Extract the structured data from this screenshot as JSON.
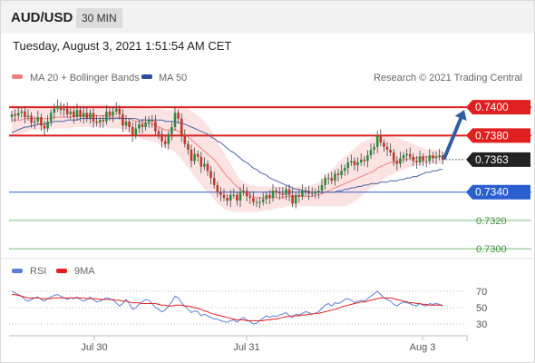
{
  "header": {
    "symbol": "AUD/USD",
    "timeframe": "30 MIN"
  },
  "datetime": "Tuesday, August 3, 2021 1:51:54 AM CET",
  "legend": {
    "ma20": {
      "label": "MA 20 + Bollinger Bands",
      "color": "#f08080"
    },
    "ma50": {
      "label": "MA 50",
      "color": "#2a4f9a"
    },
    "rsi": {
      "label": "RSI",
      "color": "#5b7fd6"
    },
    "ma9": {
      "label": "9MA",
      "color": "#e02020"
    }
  },
  "credit": "Research © 2021 Trading Central",
  "chart_data": {
    "type": "candlestick",
    "y_range": [
      0.7293,
      0.7411
    ],
    "levels": [
      {
        "value": 0.74,
        "label": "0.7400",
        "kind": "resistance",
        "color": "#e02020"
      },
      {
        "value": 0.738,
        "label": "0.7380",
        "kind": "resistance",
        "color": "#e02020"
      },
      {
        "value": 0.7363,
        "label": "0.7363",
        "kind": "last-price",
        "color": "#222222"
      },
      {
        "value": 0.734,
        "label": "0.7340",
        "kind": "pivot",
        "color": "#2a5fd0"
      },
      {
        "value": 0.732,
        "label": "0.7320",
        "kind": "support",
        "color": "#7cb87c"
      },
      {
        "value": 0.73,
        "label": "0.7300",
        "kind": "support",
        "color": "#7cb87c"
      }
    ],
    "x_ticks": [
      "Jul 30",
      "Jul 31",
      "Aug 3"
    ],
    "bullish_color": "#2e8b3a",
    "bearish_color": "#c0392b",
    "close": [
      0.7395,
      0.7394,
      0.7396,
      0.7397,
      0.7393,
      0.7394,
      0.7389,
      0.739,
      0.7393,
      0.7387,
      0.7385,
      0.739,
      0.7396,
      0.7399,
      0.7401,
      0.7398,
      0.7399,
      0.7395,
      0.7397,
      0.7393,
      0.7398,
      0.7393,
      0.7396,
      0.7392,
      0.7396,
      0.739,
      0.7389,
      0.7391,
      0.739,
      0.7397,
      0.7394,
      0.7397,
      0.7399,
      0.7395,
      0.7387,
      0.739,
      0.7386,
      0.738,
      0.7385,
      0.7388,
      0.7386,
      0.7389,
      0.7391,
      0.739,
      0.7383,
      0.7381,
      0.7376,
      0.7374,
      0.7381,
      0.7386,
      0.7396,
      0.7392,
      0.738,
      0.7374,
      0.737,
      0.7362,
      0.7367,
      0.7365,
      0.7358,
      0.736,
      0.7355,
      0.735,
      0.7345,
      0.734,
      0.7338,
      0.7336,
      0.7334,
      0.7338,
      0.7338,
      0.7334,
      0.734,
      0.7341,
      0.7337,
      0.7336,
      0.7333,
      0.7333,
      0.7333,
      0.7335,
      0.7338,
      0.7336,
      0.7341,
      0.734,
      0.7339,
      0.7338,
      0.7342,
      0.7338,
      0.7332,
      0.7338,
      0.7337,
      0.7341,
      0.7341,
      0.7339,
      0.7339,
      0.734,
      0.7341,
      0.7345,
      0.735,
      0.735,
      0.7348,
      0.7353,
      0.7352,
      0.7355,
      0.7357,
      0.7361,
      0.7362,
      0.7359,
      0.7361,
      0.7363,
      0.7362,
      0.7366,
      0.737,
      0.7372,
      0.738,
      0.7375,
      0.7372,
      0.737,
      0.7368,
      0.7362,
      0.736,
      0.7364,
      0.7366,
      0.7367,
      0.7365,
      0.7362,
      0.7361,
      0.7365,
      0.7362,
      0.7362,
      0.7366,
      0.7364,
      0.7365,
      0.7366,
      0.7363
    ],
    "ma20": [
      0.7391,
      0.7391,
      0.7391,
      0.7391,
      0.7392,
      0.7392,
      0.7392,
      0.7392,
      0.7392,
      0.7392,
      0.7392,
      0.7392,
      0.7392,
      0.7393,
      0.7393,
      0.7393,
      0.7393,
      0.7393,
      0.7393,
      0.7394,
      0.7394,
      0.7394,
      0.7394,
      0.7394,
      0.7394,
      0.7394,
      0.7394,
      0.7394,
      0.7394,
      0.7394,
      0.7393,
      0.7393,
      0.7393,
      0.7393,
      0.7392,
      0.7392,
      0.7392,
      0.7391,
      0.739,
      0.739,
      0.7389,
      0.7389,
      0.7388,
      0.7388,
      0.7387,
      0.7386,
      0.7385,
      0.7384,
      0.7384,
      0.7384,
      0.7384,
      0.7383,
      0.7382,
      0.738,
      0.7379,
      0.7377,
      0.7375,
      0.7373,
      0.7371,
      0.7369,
      0.7367,
      0.7365,
      0.7363,
      0.736,
      0.7357,
      0.7354,
      0.7351,
      0.7349,
      0.7346,
      0.7344,
      0.7342,
      0.734,
      0.7339,
      0.7338,
      0.7337,
      0.7336,
      0.7336,
      0.7336,
      0.7336,
      0.7336,
      0.7336,
      0.7336,
      0.7336,
      0.7336,
      0.7337,
      0.7337,
      0.7337,
      0.7337,
      0.7337,
      0.7337,
      0.7337,
      0.7337,
      0.7337,
      0.7338,
      0.7338,
      0.7339,
      0.734,
      0.7341,
      0.7342,
      0.7343,
      0.7344,
      0.7345,
      0.7346,
      0.7347,
      0.7348,
      0.7349,
      0.735,
      0.7351,
      0.7352,
      0.7353,
      0.7354,
      0.7355,
      0.7357,
      0.7358,
      0.7359,
      0.736,
      0.7361,
      0.7361,
      0.7362,
      0.7362,
      0.7363,
      0.7363,
      0.7364,
      0.7364,
      0.7364,
      0.7365,
      0.7365,
      0.7365,
      0.7365,
      0.7365,
      0.7365,
      0.7365,
      0.7365
    ],
    "bb_upper": [
      0.7402,
      0.7402,
      0.7401,
      0.7401,
      0.7401,
      0.7401,
      0.74,
      0.74,
      0.74,
      0.74,
      0.74,
      0.74,
      0.7401,
      0.7401,
      0.7401,
      0.7401,
      0.7401,
      0.7401,
      0.7401,
      0.7402,
      0.7402,
      0.7402,
      0.7402,
      0.7402,
      0.7402,
      0.7402,
      0.7402,
      0.7402,
      0.7402,
      0.7402,
      0.7401,
      0.7401,
      0.7401,
      0.7401,
      0.7401,
      0.7401,
      0.7401,
      0.7401,
      0.7401,
      0.7401,
      0.7401,
      0.74,
      0.74,
      0.7399,
      0.7399,
      0.7399,
      0.7399,
      0.7398,
      0.7398,
      0.7398,
      0.74,
      0.7401,
      0.7401,
      0.74,
      0.7399,
      0.7397,
      0.7396,
      0.7394,
      0.7392,
      0.739,
      0.7387,
      0.7384,
      0.738,
      0.7376,
      0.7372,
      0.7368,
      0.7364,
      0.736,
      0.7356,
      0.7352,
      0.7349,
      0.7347,
      0.7346,
      0.7345,
      0.7345,
      0.7344,
      0.7344,
      0.7344,
      0.7344,
      0.7344,
      0.7344,
      0.7344,
      0.7344,
      0.7344,
      0.7344,
      0.7344,
      0.7344,
      0.7344,
      0.7344,
      0.7344,
      0.7344,
      0.7344,
      0.7345,
      0.7346,
      0.7347,
      0.7349,
      0.7351,
      0.7353,
      0.7356,
      0.7358,
      0.7361,
      0.7363,
      0.7365,
      0.7367,
      0.7369,
      0.7371,
      0.7373,
      0.7375,
      0.7376,
      0.7377,
      0.7378,
      0.7379,
      0.738,
      0.738,
      0.738,
      0.738,
      0.7379,
      0.7379,
      0.7378,
      0.7378,
      0.7377,
      0.7376,
      0.7375,
      0.7374,
      0.7373,
      0.7372,
      0.7371,
      0.737,
      0.737,
      0.737,
      0.737,
      0.737,
      0.737
    ],
    "bb_lower": [
      0.738,
      0.738,
      0.7381,
      0.7381,
      0.7382,
      0.7383,
      0.7384,
      0.7384,
      0.7384,
      0.7384,
      0.7384,
      0.7384,
      0.7384,
      0.7385,
      0.7385,
      0.7385,
      0.7385,
      0.7385,
      0.7385,
      0.7386,
      0.7386,
      0.7386,
      0.7386,
      0.7386,
      0.7386,
      0.7386,
      0.7386,
      0.7386,
      0.7386,
      0.7386,
      0.7385,
      0.7385,
      0.7385,
      0.7385,
      0.7384,
      0.7383,
      0.7382,
      0.7381,
      0.738,
      0.7379,
      0.7377,
      0.7377,
      0.7376,
      0.7376,
      0.7375,
      0.7374,
      0.7373,
      0.7371,
      0.737,
      0.737,
      0.7368,
      0.7366,
      0.7363,
      0.736,
      0.7357,
      0.7354,
      0.7351,
      0.7348,
      0.7345,
      0.7342,
      0.734,
      0.7338,
      0.7335,
      0.7332,
      0.733,
      0.7328,
      0.7327,
      0.7327,
      0.7326,
      0.7326,
      0.7326,
      0.7326,
      0.7326,
      0.7326,
      0.7326,
      0.7326,
      0.7326,
      0.7327,
      0.7327,
      0.7327,
      0.7328,
      0.7328,
      0.7329,
      0.7329,
      0.733,
      0.733,
      0.733,
      0.733,
      0.733,
      0.733,
      0.733,
      0.733,
      0.733,
      0.733,
      0.733,
      0.733,
      0.733,
      0.733,
      0.733,
      0.733,
      0.733,
      0.733,
      0.733,
      0.7331,
      0.7332,
      0.7333,
      0.7335,
      0.7337,
      0.7339,
      0.7341,
      0.7343,
      0.7344,
      0.7345,
      0.7347,
      0.7349,
      0.7351,
      0.7352,
      0.7353,
      0.7354,
      0.7355,
      0.7356,
      0.7357,
      0.7358,
      0.7358,
      0.7359,
      0.7359,
      0.736,
      0.736,
      0.736,
      0.736,
      0.736,
      0.736,
      0.736
    ],
    "ma50": [
      0.7382,
      0.7383,
      0.7384,
      0.7385,
      0.7386,
      0.7386,
      0.7387,
      0.7387,
      0.7388,
      0.7388,
      0.7388,
      0.7389,
      0.7389,
      0.739,
      0.739,
      0.739,
      0.739,
      0.7391,
      0.7391,
      0.7391,
      0.7391,
      0.7392,
      0.7392,
      0.7392,
      0.7392,
      0.7392,
      0.7392,
      0.7392,
      0.7392,
      0.7392,
      0.7392,
      0.7392,
      0.7392,
      0.7392,
      0.7392,
      0.7392,
      0.7392,
      0.7392,
      0.7392,
      0.7391,
      0.7391,
      0.7391,
      0.7391,
      0.7391,
      0.7391,
      0.7391,
      0.7391,
      0.739,
      0.739,
      0.739,
      0.739,
      0.7389,
      0.7389,
      0.7388,
      0.7387,
      0.7386,
      0.7385,
      0.7384,
      0.7383,
      0.7382,
      0.7381,
      0.7379,
      0.7378,
      0.7376,
      0.7375,
      0.7373,
      0.7371,
      0.7369,
      0.7368,
      0.7366,
      0.7364,
      0.7362,
      0.7361,
      0.7359,
      0.7357,
      0.7356,
      0.7354,
      0.7353,
      0.7352,
      0.735,
      0.7349,
      0.7348,
      0.7347,
      0.7346,
      0.7345,
      0.7344,
      0.7343,
      0.7342,
      0.7342,
      0.7341,
      0.7341,
      0.734,
      0.734,
      0.734,
      0.734,
      0.734,
      0.734,
      0.734,
      0.734,
      0.734,
      0.7341,
      0.7341,
      0.7342,
      0.7342,
      0.7343,
      0.7343,
      0.7344,
      0.7344,
      0.7345,
      0.7345,
      0.7346,
      0.7346,
      0.7346,
      0.7347,
      0.7347,
      0.7347,
      0.7348,
      0.7348,
      0.7348,
      0.7349,
      0.7349,
      0.735,
      0.735,
      0.7351,
      0.7351,
      0.7352,
      0.7353,
      0.7354,
      0.7354,
      0.7355,
      0.7355,
      0.7356,
      0.7356
    ],
    "forecast_target": 0.74,
    "rsi_panel": {
      "y_range": [
        20,
        80
      ],
      "levels": [
        70,
        50,
        30
      ],
      "rsi": [
        70,
        68,
        66,
        64,
        60,
        58,
        60,
        62,
        63,
        60,
        58,
        61,
        63,
        65,
        66,
        64,
        62,
        60,
        62,
        61,
        63,
        60,
        58,
        60,
        63,
        60,
        57,
        58,
        60,
        62,
        61,
        59,
        56,
        52,
        55,
        60,
        55,
        48,
        50,
        54,
        57,
        60,
        59,
        55,
        50,
        48,
        45,
        47,
        52,
        57,
        64,
        62,
        56,
        52,
        48,
        44,
        46,
        45,
        40,
        42,
        40,
        38,
        36,
        36,
        34,
        33,
        32,
        34,
        35,
        32,
        36,
        38,
        35,
        33,
        30,
        31,
        34,
        37,
        40,
        38,
        40,
        39,
        41,
        42,
        44,
        40,
        38,
        42,
        41,
        43,
        45,
        44,
        42,
        43,
        45,
        49,
        53,
        55,
        52,
        56,
        55,
        57,
        60,
        61,
        59,
        56,
        58,
        59,
        58,
        61,
        64,
        67,
        70,
        66,
        62,
        60,
        58,
        54,
        52,
        55,
        57,
        56,
        55,
        53,
        52,
        55,
        53,
        52,
        55,
        54,
        55,
        54,
        52
      ],
      "ma9": [
        66,
        66,
        65,
        64,
        63,
        62,
        62,
        62,
        62,
        61,
        61,
        61,
        61,
        62,
        62,
        62,
        62,
        62,
        62,
        62,
        62,
        62,
        62,
        61,
        61,
        61,
        61,
        60,
        60,
        60,
        60,
        60,
        59,
        59,
        58,
        58,
        57,
        56,
        56,
        56,
        55,
        55,
        55,
        55,
        55,
        54,
        53,
        53,
        52,
        52,
        53,
        53,
        53,
        52,
        52,
        51,
        50,
        49,
        48,
        46,
        45,
        43,
        42,
        41,
        40,
        39,
        38,
        37,
        36,
        35,
        35,
        35,
        34,
        34,
        34,
        34,
        34,
        34,
        35,
        35,
        36,
        36,
        37,
        38,
        39,
        39,
        40,
        40,
        40,
        41,
        41,
        42,
        42,
        43,
        43,
        44,
        45,
        46,
        47,
        48,
        49,
        51,
        52,
        53,
        54,
        55,
        56,
        57,
        57,
        58,
        59,
        60,
        61,
        62,
        62,
        62,
        62,
        61,
        60,
        59,
        58,
        57,
        56,
        56,
        55,
        55,
        54,
        54,
        53,
        53,
        53,
        53,
        53
      ]
    }
  }
}
